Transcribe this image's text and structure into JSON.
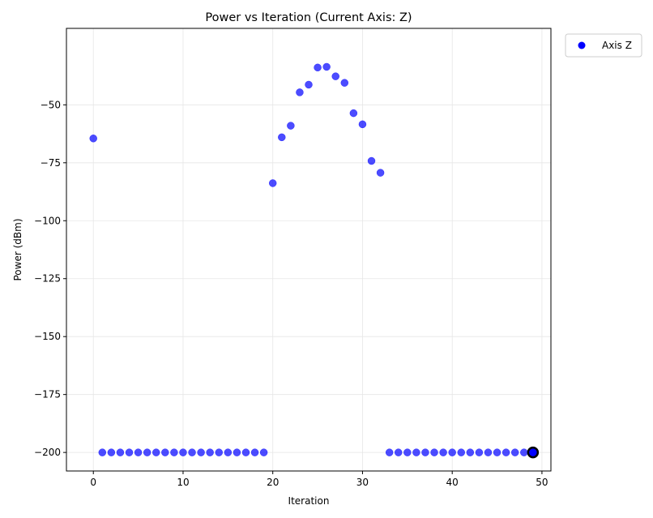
{
  "chart_data": {
    "type": "scatter",
    "title": "Power vs Iteration (Current Axis: Z)",
    "xlabel": "Iteration",
    "ylabel": "Power (dBm)",
    "xlim": [
      -3,
      51
    ],
    "ylim": [
      -208,
      -17
    ],
    "xticks": [
      0,
      10,
      20,
      30,
      40,
      50
    ],
    "yticks": [
      -200,
      -175,
      -150,
      -125,
      -100,
      -75,
      -50
    ],
    "xtick_labels": [
      "0",
      "10",
      "20",
      "30",
      "40",
      "50"
    ],
    "ytick_labels": [
      "−200",
      "−175",
      "−150",
      "−125",
      "−100",
      "−75",
      "−50"
    ],
    "grid": true,
    "legend": {
      "placement": "outside-top-right",
      "entries": [
        "Axis Z"
      ]
    },
    "series": [
      {
        "name": "Axis Z",
        "color": "#0000ff",
        "x": [
          0,
          1,
          2,
          3,
          4,
          5,
          6,
          7,
          8,
          9,
          10,
          11,
          12,
          13,
          14,
          15,
          16,
          17,
          18,
          19,
          20,
          21,
          22,
          23,
          24,
          25,
          26,
          27,
          28,
          29,
          30,
          31,
          32,
          33,
          34,
          35,
          36,
          37,
          38,
          39,
          40,
          41,
          42,
          43,
          44,
          45,
          46,
          47,
          48,
          49
        ],
        "y": [
          -64.5,
          -200,
          -200,
          -200,
          -200,
          -200,
          -200,
          -200,
          -200,
          -200,
          -200,
          -200,
          -200,
          -200,
          -200,
          -200,
          -200,
          -200,
          -200,
          -200,
          -83.8,
          -64,
          -59,
          -44.6,
          -41.3,
          -33.9,
          -33.6,
          -37.7,
          -40.5,
          -53.6,
          -58.4,
          -74.2,
          -79.3,
          -200,
          -200,
          -200,
          -200,
          -200,
          -200,
          -200,
          -200,
          -200,
          -200,
          -200,
          -200,
          -200,
          -200,
          -200,
          -200,
          -200
        ]
      }
    ],
    "highlight": {
      "x": 49,
      "y": -200
    }
  }
}
